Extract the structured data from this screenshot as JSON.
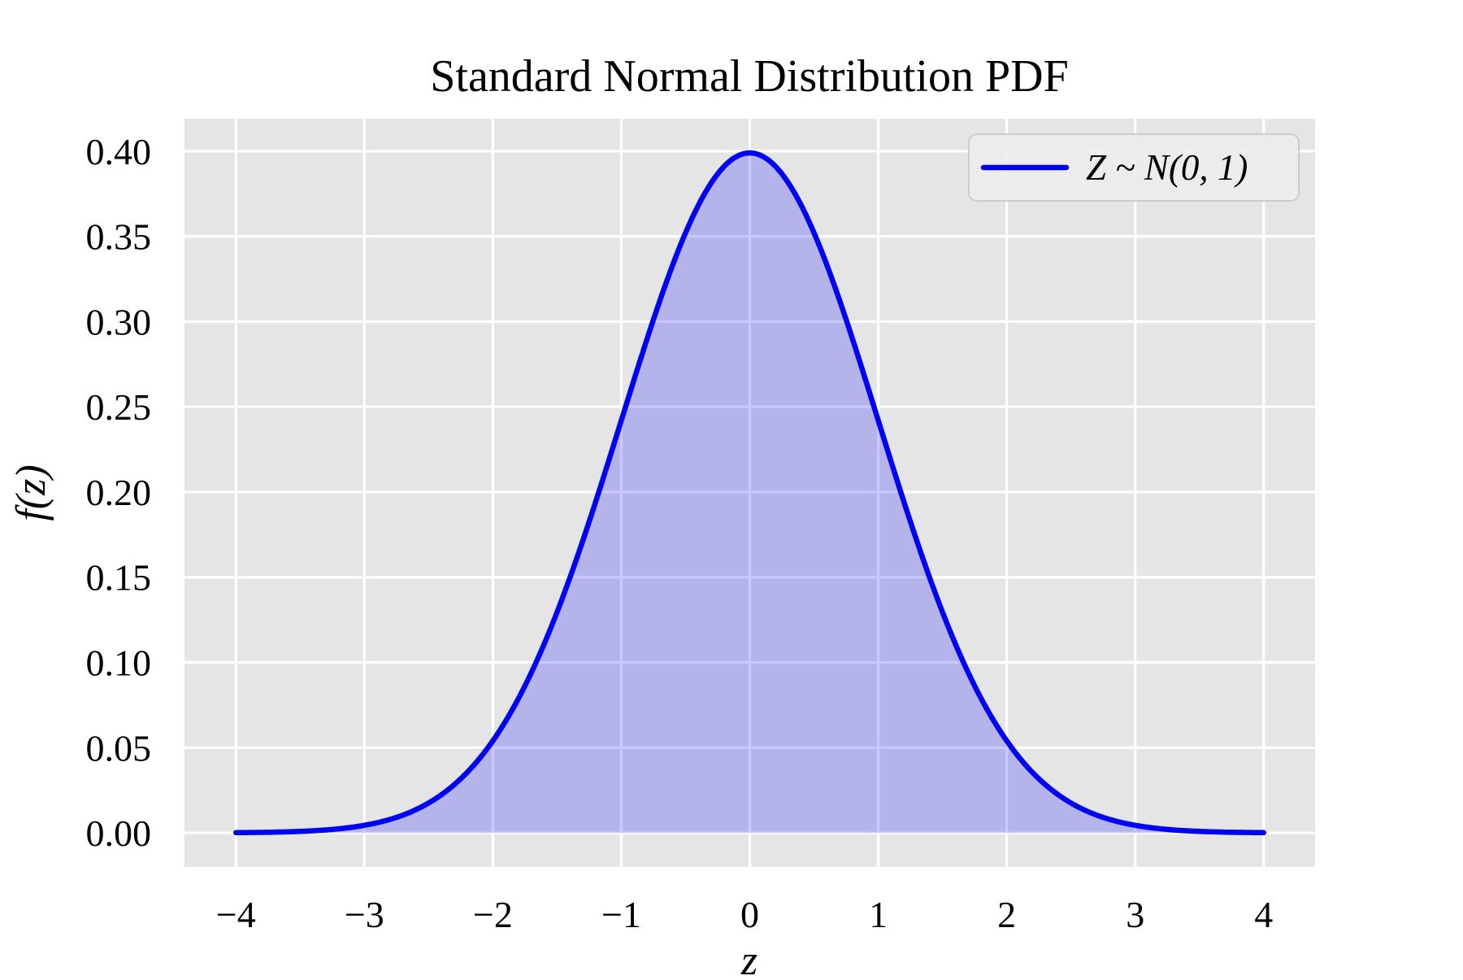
{
  "chart_data": {
    "type": "line",
    "title": "Standard Normal Distribution PDF",
    "xlabel": "z",
    "ylabel": "f(z)",
    "grid": true,
    "legend": {
      "position": "upper right",
      "entries": [
        "Z ~ N(0, 1)"
      ]
    },
    "xlim": [
      -4.4,
      4.4
    ],
    "ylim": [
      -0.02,
      0.419
    ],
    "xticks": [
      -4,
      -3,
      -2,
      -1,
      0,
      1,
      2,
      3,
      4
    ],
    "xtick_labels": [
      "−4",
      "−3",
      "−2",
      "−1",
      "0",
      "1",
      "2",
      "3",
      "4"
    ],
    "yticks": [
      0,
      0.05,
      0.1,
      0.15,
      0.2,
      0.25,
      0.3,
      0.35,
      0.4
    ],
    "ytick_labels": [
      "0.00",
      "0.05",
      "0.10",
      "0.15",
      "0.20",
      "0.25",
      "0.30",
      "0.35",
      "0.40"
    ],
    "series": [
      {
        "name": "Z ~ N(0, 1)",
        "distribution": {
          "family": "normal",
          "mu": 0,
          "sigma": 1
        },
        "x_range": [
          -4,
          4
        ],
        "fill_to_zero": true,
        "x": [
          -4,
          -3.5,
          -3,
          -2.5,
          -2,
          -1.5,
          -1,
          -0.5,
          0,
          0.5,
          1,
          1.5,
          2,
          2.5,
          3,
          3.5,
          4
        ],
        "y": [
          0.0001,
          0.0009,
          0.0044,
          0.0175,
          0.054,
          0.1295,
          0.242,
          0.3521,
          0.3989,
          0.3521,
          0.242,
          0.1295,
          0.054,
          0.0175,
          0.0044,
          0.0009,
          0.0001
        ]
      }
    ],
    "colors": {
      "line": "#0000f5",
      "fill": "rgba(0,0,255,0.21)",
      "plot_background": "#e5e5e5",
      "grid": "#ffffff",
      "legend_background": "rgba(236,236,236,0.9)",
      "legend_border": "#cccccc",
      "text": "#000000"
    }
  }
}
